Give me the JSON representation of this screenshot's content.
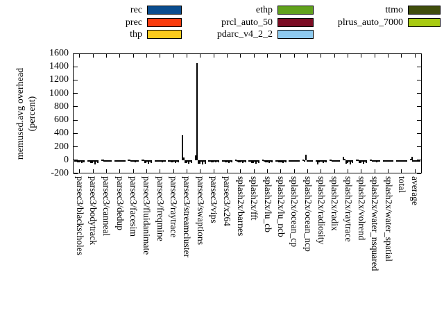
{
  "chart_data": {
    "type": "bar",
    "title": "",
    "xlabel": "",
    "ylabel": "memused.avg overhead (percent)",
    "ylabel_lines": [
      "memused.avg overhead",
      "(percent)"
    ],
    "ylim": [
      -200,
      1600
    ],
    "ytick_step": 200,
    "ytick_labels": [
      "-200",
      "0",
      "200",
      "400",
      "600",
      "800",
      "1000",
      "1200",
      "1400",
      "1600"
    ],
    "grid": false,
    "legend_position": "top",
    "categories": [
      "parsec3/blackscholes",
      "parsec3/bodytrack",
      "parsec3/canneal",
      "parsec3/dedup",
      "parsec3/facesim",
      "parsec3/fluidanimate",
      "parsec3/freqmine",
      "parsec3/raytrace",
      "parsec3/streamcluster",
      "parsec3/swaptions",
      "parsec3/vips",
      "parsec3/x264",
      "splash2x/barnes",
      "splash2x/fft",
      "splash2x/lu_cb",
      "splash2x/lu_ncb",
      "splash2x/ocean_cp",
      "splash2x/ocean_ncp",
      "splash2x/radiosity",
      "splash2x/radix",
      "splash2x/raytrace",
      "splash2x/volrend",
      "splash2x/water_nsquared",
      "splash2x/water_spatial",
      "total",
      "average"
    ],
    "series": [
      {
        "name": "rec",
        "color": "#0a4d8f",
        "values": [
          -5,
          -5,
          5,
          -3,
          8,
          10,
          -5,
          -5,
          370,
          75,
          -5,
          -8,
          5,
          -5,
          5,
          -5,
          -3,
          5,
          -8,
          8,
          45,
          10,
          10,
          -5,
          -3,
          15
        ]
      },
      {
        "name": "prec",
        "color": "#fa3b0e",
        "values": [
          -5,
          -8,
          3,
          -3,
          5,
          5,
          -5,
          -5,
          35,
          1450,
          -5,
          -8,
          -5,
          -8,
          -5,
          -8,
          -3,
          -5,
          -60,
          5,
          20,
          5,
          8,
          -5,
          -3,
          50
        ]
      },
      {
        "name": "thp",
        "color": "#fccb1c",
        "values": [
          -35,
          -45,
          -12,
          -15,
          -25,
          -45,
          -25,
          -35,
          -45,
          -50,
          -30,
          -35,
          -30,
          -45,
          -30,
          -35,
          -10,
          85,
          -30,
          -12,
          -50,
          -40,
          -25,
          -20,
          -12,
          -8
        ]
      },
      {
        "name": "ethp",
        "color": "#61a21c",
        "values": [
          -35,
          -45,
          -12,
          -15,
          -25,
          -45,
          -25,
          -35,
          -45,
          -50,
          -30,
          -35,
          -30,
          -40,
          -30,
          -30,
          -10,
          -15,
          -25,
          -10,
          -40,
          -40,
          -25,
          -20,
          -12,
          -8
        ]
      },
      {
        "name": "prcl_auto_50",
        "color": "#7b0c23",
        "values": [
          -8,
          -10,
          -5,
          -5,
          -8,
          -10,
          -8,
          -10,
          -15,
          -15,
          -10,
          -10,
          -8,
          -10,
          -8,
          -30,
          -5,
          -8,
          -15,
          -5,
          -10,
          -10,
          -8,
          -8,
          -5,
          -5
        ]
      },
      {
        "name": "pdarc_v4_2_2",
        "color": "#8ecaef",
        "values": [
          -40,
          -60,
          -15,
          -18,
          -30,
          -55,
          -30,
          -45,
          -55,
          -70,
          -35,
          -45,
          -40,
          -55,
          -40,
          -40,
          -12,
          -20,
          -40,
          -15,
          -60,
          -50,
          -35,
          -25,
          -15,
          -12
        ]
      },
      {
        "name": "ttmo",
        "color": "#404e0c",
        "values": [
          -8,
          -10,
          -5,
          -5,
          -8,
          -10,
          -8,
          -10,
          -15,
          -15,
          -10,
          -10,
          -8,
          -10,
          -8,
          -8,
          -5,
          -8,
          -10,
          -5,
          -10,
          -10,
          -8,
          -8,
          -5,
          -5
        ]
      },
      {
        "name": "plrus_auto_7000",
        "color": "#a8cb11",
        "values": [
          -35,
          -45,
          -12,
          -15,
          -25,
          -45,
          -25,
          -35,
          -45,
          -50,
          -30,
          -35,
          -30,
          -40,
          -30,
          -35,
          -10,
          -15,
          -30,
          -10,
          -45,
          -40,
          -25,
          -20,
          -12,
          -8
        ]
      }
    ],
    "legend_columns": [
      [
        "rec",
        "prec",
        "thp"
      ],
      [
        "ethp",
        "prcl_auto_50",
        "pdarc_v4_2_2"
      ],
      [
        "ttmo",
        "plrus_auto_7000"
      ]
    ]
  }
}
